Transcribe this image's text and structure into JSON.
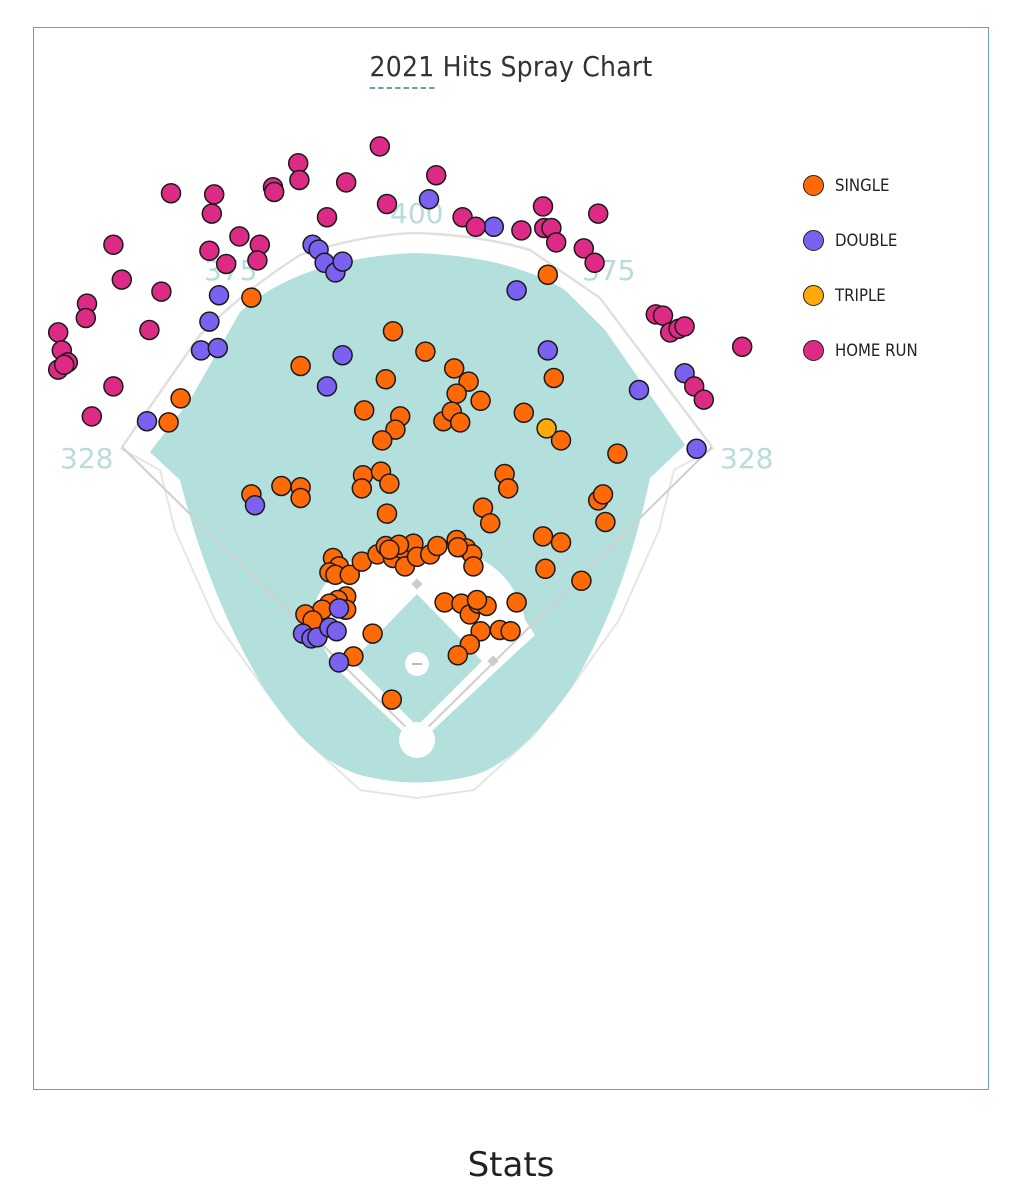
{
  "chart_data": {
    "type": "scatter",
    "title": "2021 Hits Spray Chart",
    "title_underlined_part": "2021",
    "units": "feet from home plate (x: toward right field, y: toward center field)",
    "legend_position": "top-right",
    "fence_distances": {
      "left_line": "328",
      "left_center": "375",
      "center": "400",
      "right_center": "375",
      "right_line": "328"
    },
    "colors": {
      "grass": "#b3dfdc",
      "frame": "#6a9fac",
      "distance_label": "#b8dcd9"
    },
    "series": [
      {
        "name": "SINGLE",
        "color": "#ff6a06",
        "points": [
          [
            -138,
            367
          ],
          [
            -197,
            283
          ],
          [
            -207,
            263
          ],
          [
            -20,
            339
          ],
          [
            7,
            322
          ],
          [
            -97,
            310
          ],
          [
            -26,
            299
          ],
          [
            31,
            308
          ],
          [
            43,
            297
          ],
          [
            33,
            287
          ],
          [
            53,
            281
          ],
          [
            -44,
            273
          ],
          [
            -14,
            268
          ],
          [
            -18,
            257
          ],
          [
            -29,
            248
          ],
          [
            22,
            264
          ],
          [
            29,
            272
          ],
          [
            36,
            263
          ],
          [
            89,
            271
          ],
          [
            114,
            300
          ],
          [
            109,
            386
          ],
          [
            120,
            248
          ],
          [
            167,
            237
          ],
          [
            73,
            220
          ],
          [
            76,
            208
          ],
          [
            -45,
            219
          ],
          [
            -30,
            222
          ],
          [
            -46,
            208
          ],
          [
            -23,
            212
          ],
          [
            -113,
            210
          ],
          [
            -97,
            209
          ],
          [
            -97,
            200
          ],
          [
            -138,
            203
          ],
          [
            -25,
            187
          ],
          [
            55,
            192
          ],
          [
            61,
            179
          ],
          [
            151,
            198
          ],
          [
            155,
            203
          ],
          [
            157,
            180
          ],
          [
            105,
            168
          ],
          [
            120,
            163
          ],
          [
            107,
            141
          ],
          [
            137,
            131
          ],
          [
            -70,
            150
          ],
          [
            -65,
            143
          ],
          [
            -73,
            138
          ],
          [
            -68,
            136
          ],
          [
            -56,
            136
          ],
          [
            -46,
            147
          ],
          [
            -33,
            153
          ],
          [
            -26,
            160
          ],
          [
            -20,
            150
          ],
          [
            -13,
            158
          ],
          [
            -10,
            143
          ],
          [
            -3,
            162
          ],
          [
            0,
            151
          ],
          [
            11,
            153
          ],
          [
            17,
            160
          ],
          [
            33,
            165
          ],
          [
            41,
            158
          ],
          [
            46,
            153
          ],
          [
            47,
            143
          ],
          [
            34,
            159
          ],
          [
            -15,
            161
          ],
          [
            -23,
            157
          ],
          [
            -59,
            118
          ],
          [
            -66,
            115
          ],
          [
            -60,
            107
          ],
          [
            -73,
            112
          ],
          [
            -79,
            107
          ],
          [
            -93,
            103
          ],
          [
            -87,
            98
          ],
          [
            -59,
            107
          ],
          [
            -37,
            87
          ],
          [
            -53,
            68
          ],
          [
            23,
            113
          ],
          [
            37,
            112
          ],
          [
            44,
            103
          ],
          [
            51,
            112
          ],
          [
            58,
            110
          ],
          [
            50,
            115
          ],
          [
            83,
            113
          ],
          [
            53,
            89
          ],
          [
            69,
            90
          ],
          [
            78,
            89
          ],
          [
            44,
            78
          ],
          [
            34,
            69
          ],
          [
            -21,
            32
          ]
        ]
      },
      {
        "name": "DOUBLE",
        "color": "#7b61f0",
        "points": [
          [
            10,
            449
          ],
          [
            64,
            426
          ],
          [
            -87,
            411
          ],
          [
            -82,
            407
          ],
          [
            -77,
            396
          ],
          [
            -68,
            388
          ],
          [
            -62,
            397
          ],
          [
            -165,
            369
          ],
          [
            -173,
            347
          ],
          [
            -180,
            323
          ],
          [
            -166,
            325
          ],
          [
            -62,
            319
          ],
          [
            -75,
            293
          ],
          [
            -225,
            264
          ],
          [
            -135,
            194
          ],
          [
            83,
            373
          ],
          [
            109,
            323
          ],
          [
            185,
            290
          ],
          [
            223,
            304
          ],
          [
            233,
            241
          ],
          [
            -95,
            87
          ],
          [
            -88,
            83
          ],
          [
            -83,
            84
          ],
          [
            -73,
            92
          ],
          [
            -67,
            89
          ],
          [
            -65,
            108
          ],
          [
            -65,
            63
          ]
        ]
      },
      {
        "name": "TRIPLE",
        "color": "#ffaa0a",
        "points": [
          [
            108,
            258
          ]
        ]
      },
      {
        "name": "HOME RUN",
        "color": "#dd2a85",
        "points": [
          [
            -31,
            493
          ],
          [
            16,
            469
          ],
          [
            -99,
            479
          ],
          [
            -98,
            465
          ],
          [
            -120,
            459
          ],
          [
            -119,
            455
          ],
          [
            -59,
            463
          ],
          [
            -205,
            454
          ],
          [
            -169,
            453
          ],
          [
            -171,
            437
          ],
          [
            -75,
            434
          ],
          [
            -25,
            445
          ],
          [
            -253,
            411
          ],
          [
            -246,
            382
          ],
          [
            -213,
            372
          ],
          [
            -275,
            362
          ],
          [
            -276,
            350
          ],
          [
            -223,
            340
          ],
          [
            -299,
            338
          ],
          [
            -296,
            323
          ],
          [
            -291,
            313
          ],
          [
            -299,
            307
          ],
          [
            -294,
            311
          ],
          [
            -253,
            293
          ],
          [
            -271,
            268
          ],
          [
            -173,
            406
          ],
          [
            -148,
            418
          ],
          [
            -131,
            411
          ],
          [
            -133,
            398
          ],
          [
            -159,
            395
          ],
          [
            38,
            434
          ],
          [
            49,
            426
          ],
          [
            87,
            423
          ],
          [
            105,
            443
          ],
          [
            106,
            425
          ],
          [
            112,
            425
          ],
          [
            116,
            413
          ],
          [
            151,
            437
          ],
          [
            139,
            408
          ],
          [
            148,
            396
          ],
          [
            199,
            353
          ],
          [
            205,
            352
          ],
          [
            211,
            338
          ],
          [
            218,
            341
          ],
          [
            223,
            343
          ],
          [
            271,
            326
          ],
          [
            231,
            293
          ],
          [
            239,
            282
          ]
        ]
      }
    ]
  },
  "page": {
    "next_section_heading": "Stats"
  }
}
